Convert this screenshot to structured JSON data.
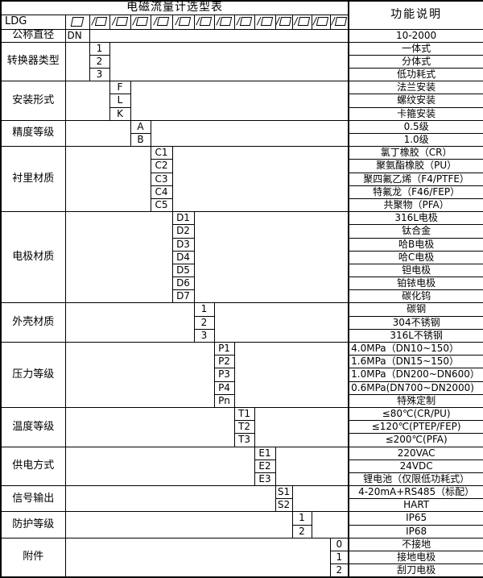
{
  "title": "电磁流量计选型表",
  "function_header": "功能说明",
  "model_row": {
    "prefix": "LDG",
    "slash": "/",
    "box_count": 13
  },
  "groups": [
    {
      "label": "公称直径",
      "column": 1,
      "code_align": "left",
      "options": [
        {
          "code": "DN",
          "desc": "10-2000"
        }
      ]
    },
    {
      "label": "转换器类型",
      "column": 2,
      "options": [
        {
          "code": "1",
          "desc": "一体式"
        },
        {
          "code": "2",
          "desc": "分体式"
        },
        {
          "code": "3",
          "desc": "低功耗式"
        }
      ]
    },
    {
      "label": "安装形式",
      "column": 3,
      "options": [
        {
          "code": "F",
          "desc": "法兰安装"
        },
        {
          "code": "L",
          "desc": "螺纹安装"
        },
        {
          "code": "K",
          "desc": "卡箍安装"
        }
      ]
    },
    {
      "label": "精度等级",
      "column": 4,
      "options": [
        {
          "code": "A",
          "desc": "0.5级"
        },
        {
          "code": "B",
          "desc": "1.0级"
        }
      ]
    },
    {
      "label": "衬里材质",
      "column": 5,
      "options": [
        {
          "code": "C1",
          "desc": "氯丁橡胶（CR）"
        },
        {
          "code": "C2",
          "desc": "聚氨酯橡胶（PU）"
        },
        {
          "code": "C3",
          "desc": "聚四氟乙烯（F4/PTFE）"
        },
        {
          "code": "C4",
          "desc": "特氟龙（F46/FEP）"
        },
        {
          "code": "C5",
          "desc": "共聚物（PFA）"
        }
      ]
    },
    {
      "label": "电极材质",
      "column": 6,
      "options": [
        {
          "code": "D1",
          "desc": "316L电极"
        },
        {
          "code": "D2",
          "desc": "钛合金"
        },
        {
          "code": "D3",
          "desc": "哈B电极"
        },
        {
          "code": "D4",
          "desc": "哈C电极"
        },
        {
          "code": "D5",
          "desc": "钽电极"
        },
        {
          "code": "D6",
          "desc": "铂铱电极"
        },
        {
          "code": "D7",
          "desc": "碳化钨"
        }
      ]
    },
    {
      "label": "外壳材质",
      "column": 7,
      "options": [
        {
          "code": "1",
          "desc": "碳钢"
        },
        {
          "code": "2",
          "desc": "304不锈钢"
        },
        {
          "code": "3",
          "desc": "316L不锈钢"
        }
      ]
    },
    {
      "label": "压力等级",
      "column": 8,
      "options": [
        {
          "code": "P1",
          "desc": "4.0MPa（DN10~150）",
          "desc_align": "left"
        },
        {
          "code": "P2",
          "desc": "1.6MPa（DN15~150）",
          "desc_align": "left"
        },
        {
          "code": "P3",
          "desc": "1.0MPa（DN200~DN600）",
          "desc_align": "left"
        },
        {
          "code": "P4",
          "desc": "0.6MPa(DN700~DN2000)",
          "desc_align": "left"
        },
        {
          "code": "Pn",
          "desc": "特殊定制"
        }
      ]
    },
    {
      "label": "温度等级",
      "column": 9,
      "options": [
        {
          "code": "T1",
          "desc": "≤80℃(CR/PU)"
        },
        {
          "code": "T2",
          "desc": "≤120℃(PTEP/FEP)"
        },
        {
          "code": "T3",
          "desc": "≤200℃(PFA)"
        }
      ]
    },
    {
      "label": "供电方式",
      "column": 10,
      "options": [
        {
          "code": "E1",
          "desc": "220VAC"
        },
        {
          "code": "E2",
          "desc": "24VDC"
        },
        {
          "code": "E3",
          "desc": "锂电池（仅限低功耗式）"
        }
      ]
    },
    {
      "label": "信号输出",
      "column": 11,
      "options": [
        {
          "code": "S1",
          "desc": "4-20mA+RS485（标配）"
        },
        {
          "code": "S2",
          "desc": "HART"
        }
      ]
    },
    {
      "label": "防护等级",
      "column": 12,
      "options": [
        {
          "code": "1",
          "desc": "IP65"
        },
        {
          "code": "2",
          "desc": "IP68"
        }
      ]
    },
    {
      "label": "附件",
      "column": 14,
      "options": [
        {
          "code": "0",
          "desc": "不接地"
        },
        {
          "code": "1",
          "desc": "接地电极"
        },
        {
          "code": "2",
          "desc": "刮刀电极"
        }
      ]
    }
  ]
}
